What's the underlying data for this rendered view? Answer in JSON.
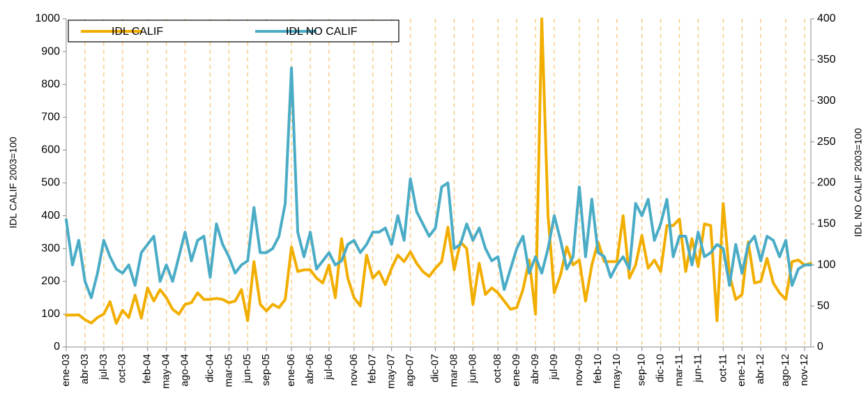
{
  "chart_data": {
    "type": "line",
    "ylabel": "IDL CALIF 2003=100",
    "y2label": "IDL NO CALIF 2003=100",
    "categories": [
      "ene-03",
      null,
      null,
      "abr-03",
      null,
      null,
      "jul-03",
      null,
      null,
      "oct-03",
      null,
      null,
      null,
      "feb-04",
      null,
      null,
      "may-04",
      null,
      null,
      "ago-04",
      null,
      null,
      null,
      "dic-04",
      null,
      null,
      "mar-05",
      null,
      null,
      "jun-05",
      null,
      null,
      "sep-05",
      null,
      null,
      null,
      "ene-06",
      null,
      null,
      "abr-06",
      null,
      null,
      "jul-06",
      null,
      null,
      null,
      "nov-06",
      null,
      null,
      "feb-07",
      null,
      null,
      "may-07",
      null,
      null,
      "ago-07",
      null,
      null,
      null,
      "dic-07",
      null,
      null,
      "mar-08",
      null,
      null,
      "jun-08",
      null,
      null,
      null,
      "oct-08",
      null,
      null,
      "ene-09",
      null,
      null,
      "abr-09",
      null,
      null,
      "jul-09",
      null,
      null,
      null,
      "nov-09",
      null,
      null,
      "feb-10",
      null,
      null,
      "may-10",
      null,
      null,
      null,
      "sep-10",
      null,
      null,
      "dic-10",
      null,
      null,
      "mar-11",
      null,
      null,
      "jun-11",
      null,
      null,
      null,
      "oct-11",
      null,
      null,
      "ene-12",
      null,
      null,
      "abr-12",
      null,
      null,
      null,
      "ago-12",
      null,
      null,
      "nov-12",
      null
    ],
    "series": [
      {
        "name": "IDL CALIF",
        "color": "#f2ae00",
        "values": [
          97,
          97,
          98,
          83,
          73,
          90,
          100,
          138,
          72,
          112,
          90,
          158,
          88,
          180,
          140,
          175,
          150,
          115,
          100,
          130,
          135,
          165,
          145,
          145,
          148,
          145,
          135,
          140,
          175,
          80,
          260,
          130,
          110,
          130,
          120,
          145,
          305,
          230,
          235,
          235,
          210,
          195,
          250,
          150,
          330,
          210,
          150,
          125,
          280,
          210,
          230,
          190,
          240,
          280,
          260,
          290,
          255,
          230,
          215,
          240,
          260,
          365,
          235,
          320,
          300,
          130,
          255,
          160,
          180,
          165,
          140,
          115,
          120,
          175,
          265,
          100,
          1000,
          400,
          165,
          220,
          305,
          250,
          265,
          140,
          250,
          320,
          260,
          260,
          260,
          400,
          210,
          250,
          340,
          240,
          265,
          230,
          370,
          370,
          390,
          230,
          330,
          245,
          375,
          370,
          80,
          437,
          220,
          145,
          160,
          320,
          195,
          200,
          270,
          195,
          165,
          145,
          260,
          265,
          250,
          255
        ]
      },
      {
        "name": "IDL NO CALIF",
        "color": "#4bacc6",
        "axis": "y2",
        "values": [
          155,
          100,
          130,
          80,
          60,
          90,
          130,
          110,
          95,
          90,
          100,
          75,
          115,
          125,
          135,
          80,
          100,
          80,
          110,
          140,
          105,
          130,
          135,
          85,
          150,
          125,
          110,
          90,
          100,
          105,
          170,
          115,
          115,
          120,
          135,
          175,
          340,
          140,
          110,
          140,
          95,
          105,
          115,
          100,
          105,
          125,
          130,
          115,
          125,
          140,
          140,
          145,
          125,
          160,
          130,
          205,
          165,
          150,
          135,
          145,
          195,
          200,
          120,
          125,
          150,
          130,
          145,
          120,
          105,
          110,
          70,
          95,
          120,
          135,
          90,
          110,
          90,
          120,
          160,
          130,
          95,
          110,
          195,
          110,
          180,
          115,
          110,
          85,
          100,
          110,
          95,
          175,
          160,
          180,
          130,
          150,
          180,
          110,
          135,
          135,
          100,
          140,
          110,
          115,
          125,
          120,
          75,
          125,
          90,
          125,
          135,
          105,
          135,
          130,
          110,
          130,
          75,
          95,
          100,
          100
        ]
      }
    ],
    "ylim": [
      0,
      1000
    ],
    "yticks": [
      0,
      100,
      200,
      300,
      400,
      500,
      600,
      700,
      800,
      900,
      1000
    ],
    "y2lim": [
      0,
      400
    ],
    "y2ticks": [
      0,
      50,
      100,
      150,
      200,
      250,
      300,
      350,
      400
    ],
    "grid": true,
    "legend": "top-left"
  }
}
